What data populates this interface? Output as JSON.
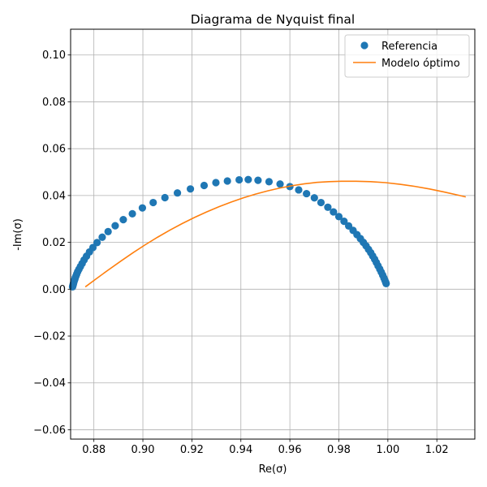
{
  "chart_data": {
    "type": "scatter",
    "title": "Diagrama de Nyquist final",
    "xlabel": "Re(σ)",
    "ylabel": "-Im(σ)",
    "xlim": [
      0.8705,
      1.0355
    ],
    "ylim": [
      -0.064,
      0.111
    ],
    "xticks": [
      0.88,
      0.9,
      0.92,
      0.94,
      0.96,
      0.98,
      1.0,
      1.02
    ],
    "xtick_labels": [
      "0.88",
      "0.90",
      "0.92",
      "0.94",
      "0.96",
      "0.98",
      "1.00",
      "1.02"
    ],
    "yticks": [
      -0.06,
      -0.04,
      -0.02,
      0.0,
      0.02,
      0.04,
      0.06,
      0.08,
      0.1
    ],
    "ytick_labels": [
      "−0.06",
      "−0.04",
      "−0.02",
      "0.00",
      "0.02",
      "0.04",
      "0.06",
      "0.08",
      "0.10"
    ],
    "grid": true,
    "legend_position": "top-right",
    "series": [
      {
        "name": "Referencia",
        "kind": "markers",
        "color": "#1f77b4",
        "points": [
          [
            0.8713,
            0.001
          ],
          [
            0.8714,
            0.0014
          ],
          [
            0.8715,
            0.0018
          ],
          [
            0.8716,
            0.0022
          ],
          [
            0.8717,
            0.0026
          ],
          [
            0.8718,
            0.003
          ],
          [
            0.872,
            0.0036
          ],
          [
            0.8722,
            0.0042
          ],
          [
            0.8724,
            0.0049
          ],
          [
            0.8727,
            0.0057
          ],
          [
            0.873,
            0.0065
          ],
          [
            0.8734,
            0.0075
          ],
          [
            0.8739,
            0.0085
          ],
          [
            0.8745,
            0.0097
          ],
          [
            0.8752,
            0.011
          ],
          [
            0.876,
            0.0125
          ],
          [
            0.877,
            0.0141
          ],
          [
            0.8782,
            0.0159
          ],
          [
            0.8796,
            0.0178
          ],
          [
            0.8813,
            0.0199
          ],
          [
            0.8834,
            0.0222
          ],
          [
            0.8858,
            0.0246
          ],
          [
            0.8887,
            0.0271
          ],
          [
            0.892,
            0.0297
          ],
          [
            0.8957,
            0.0322
          ],
          [
            0.8998,
            0.0347
          ],
          [
            0.9042,
            0.037
          ],
          [
            0.909,
            0.0391
          ],
          [
            0.9141,
            0.0411
          ],
          [
            0.9194,
            0.0428
          ],
          [
            0.925,
            0.0443
          ],
          [
            0.9298,
            0.0455
          ],
          [
            0.9345,
            0.0462
          ],
          [
            0.9393,
            0.0467
          ],
          [
            0.943,
            0.0468
          ],
          [
            0.947,
            0.0465
          ],
          [
            0.9515,
            0.0459
          ],
          [
            0.956,
            0.0449
          ],
          [
            0.96,
            0.0438
          ],
          [
            0.9636,
            0.0424
          ],
          [
            0.9668,
            0.0408
          ],
          [
            0.97,
            0.039
          ],
          [
            0.9727,
            0.037
          ],
          [
            0.9755,
            0.035
          ],
          [
            0.9778,
            0.033
          ],
          [
            0.98,
            0.031
          ],
          [
            0.9821,
            0.029
          ],
          [
            0.984,
            0.027
          ],
          [
            0.9858,
            0.0251
          ],
          [
            0.9874,
            0.0233
          ],
          [
            0.9888,
            0.0216
          ],
          [
            0.99,
            0.02
          ],
          [
            0.9911,
            0.0185
          ],
          [
            0.9921,
            0.017
          ],
          [
            0.993,
            0.0156
          ],
          [
            0.9938,
            0.0142
          ],
          [
            0.9946,
            0.0128
          ],
          [
            0.9953,
            0.0114
          ],
          [
            0.996,
            0.01
          ],
          [
            0.9967,
            0.0086
          ],
          [
            0.9973,
            0.0073
          ],
          [
            0.9979,
            0.006
          ],
          [
            0.9984,
            0.0048
          ],
          [
            0.9988,
            0.0038
          ],
          [
            0.9991,
            0.003
          ],
          [
            0.9993,
            0.0024
          ]
        ]
      },
      {
        "name": "Modelo óptimo",
        "kind": "line",
        "color": "#ff7f0e",
        "points": [
          [
            0.8765,
            0.001
          ],
          [
            0.881,
            0.0045
          ],
          [
            0.886,
            0.0083
          ],
          [
            0.891,
            0.012
          ],
          [
            0.896,
            0.0156
          ],
          [
            0.901,
            0.019
          ],
          [
            0.906,
            0.0222
          ],
          [
            0.911,
            0.0252
          ],
          [
            0.916,
            0.028
          ],
          [
            0.921,
            0.0306
          ],
          [
            0.926,
            0.033
          ],
          [
            0.931,
            0.0352
          ],
          [
            0.936,
            0.0372
          ],
          [
            0.941,
            0.039
          ],
          [
            0.946,
            0.0406
          ],
          [
            0.951,
            0.042
          ],
          [
            0.956,
            0.0432
          ],
          [
            0.961,
            0.0442
          ],
          [
            0.966,
            0.045
          ],
          [
            0.971,
            0.0456
          ],
          [
            0.976,
            0.0459
          ],
          [
            0.981,
            0.0461
          ],
          [
            0.987,
            0.0461
          ],
          [
            0.993,
            0.0459
          ],
          [
            0.999,
            0.0455
          ],
          [
            1.005,
            0.0448
          ],
          [
            1.011,
            0.0439
          ],
          [
            1.017,
            0.0428
          ],
          [
            1.023,
            0.0415
          ],
          [
            1.029,
            0.0401
          ],
          [
            1.0318,
            0.0394
          ]
        ]
      }
    ]
  }
}
